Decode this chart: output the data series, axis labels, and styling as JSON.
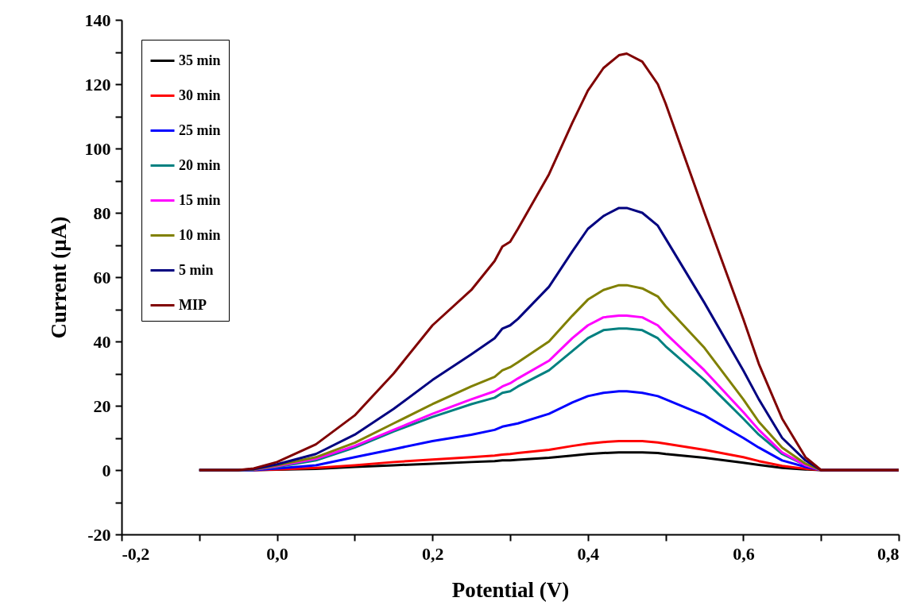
{
  "chart_data": {
    "type": "line",
    "xlabel": "Potential (V)",
    "ylabel": "Current (µA)",
    "x": [
      -0.1,
      -0.05,
      -0.03,
      0,
      0.05,
      0.1,
      0.15,
      0.2,
      0.25,
      0.28,
      0.29,
      0.3,
      0.31,
      0.35,
      0.38,
      0.4,
      0.42,
      0.44,
      0.45,
      0.47,
      0.49,
      0.5,
      0.55,
      0.6,
      0.62,
      0.65,
      0.68,
      0.7,
      0.72,
      0.8
    ],
    "series": [
      {
        "name": "35 min",
        "color": "#000000",
        "values": [
          0,
          0,
          0,
          0.1,
          0.4,
          1,
          1.5,
          2,
          2.5,
          2.8,
          3,
          3,
          3.2,
          3.8,
          4.5,
          5,
          5.3,
          5.5,
          5.5,
          5.5,
          5.3,
          5,
          3.8,
          2.3,
          1.6,
          0.7,
          0.2,
          0,
          0,
          0
        ]
      },
      {
        "name": "30 min",
        "color": "#ff0000",
        "values": [
          null,
          null,
          0,
          0.2,
          0.7,
          1.5,
          2.5,
          3.3,
          4,
          4.5,
          4.8,
          5,
          5.3,
          6.3,
          7.5,
          8.2,
          8.7,
          9,
          9,
          9,
          8.6,
          8.2,
          6.3,
          4,
          2.8,
          1.3,
          0.4,
          0,
          0,
          0
        ]
      },
      {
        "name": "25 min",
        "color": "#0000ff",
        "values": [
          0,
          0,
          0,
          0.5,
          1.5,
          4,
          6.5,
          9,
          11,
          12.5,
          13.5,
          14,
          14.5,
          17.5,
          21,
          23,
          24,
          24.5,
          24.5,
          24,
          23,
          22,
          17,
          10,
          7,
          3,
          1,
          0,
          0,
          0
        ]
      },
      {
        "name": "20 min",
        "color": "#008080",
        "values": [
          null,
          null,
          0.1,
          1,
          3,
          7,
          12,
          16.5,
          20.5,
          22.5,
          24,
          24.5,
          26,
          31,
          37,
          41,
          43.5,
          44,
          44,
          43.5,
          41,
          38.5,
          28,
          16,
          11,
          5,
          1.5,
          0,
          null,
          null
        ]
      },
      {
        "name": "15 min",
        "color": "#ff00ff",
        "values": [
          null,
          null,
          0.1,
          1.2,
          3.5,
          7.5,
          12.5,
          17.5,
          22,
          24.5,
          26,
          27,
          28.5,
          34,
          41,
          45,
          47.5,
          48,
          48,
          47.5,
          45,
          42.5,
          31,
          18,
          12.5,
          5.5,
          1.5,
          0,
          0,
          0
        ]
      },
      {
        "name": "10 min",
        "color": "#808000",
        "values": [
          0,
          0,
          0.2,
          1.5,
          4,
          8.5,
          14.5,
          20.5,
          26,
          29,
          31,
          32,
          33.5,
          40,
          48,
          53,
          56,
          57.5,
          57.5,
          56.5,
          54,
          51,
          38,
          22,
          15,
          7,
          2,
          0,
          0,
          0
        ]
      },
      {
        "name": "5 min",
        "color": "#000080",
        "values": [
          0,
          0,
          0.3,
          1.8,
          5,
          11,
          19,
          28,
          36,
          41,
          44,
          45,
          47,
          57,
          68,
          75,
          79,
          81.5,
          81.5,
          80,
          76,
          72,
          52,
          31,
          22,
          10,
          3,
          0,
          0,
          0
        ]
      },
      {
        "name": "MIP",
        "color": "#800000",
        "values": [
          0,
          0,
          0.5,
          2.5,
          8,
          17,
          30,
          45,
          56,
          65,
          69.5,
          71,
          75,
          92,
          108,
          118,
          125,
          129,
          129.5,
          127,
          120,
          114,
          80,
          47,
          33,
          16,
          4,
          0,
          0,
          0
        ]
      }
    ],
    "xlim": [
      -0.2,
      0.8
    ],
    "xticks": [
      {
        "value": -0.2,
        "label": "-0,2"
      },
      {
        "value": -0.1,
        "label": null
      },
      {
        "value": 0,
        "label": "0,0"
      },
      {
        "value": 0.1,
        "label": null
      },
      {
        "value": 0.2,
        "label": "0,2"
      },
      {
        "value": 0.3,
        "label": null
      },
      {
        "value": 0.4,
        "label": "0,4"
      },
      {
        "value": 0.5,
        "label": null
      },
      {
        "value": 0.6,
        "label": "0,6"
      },
      {
        "value": 0.7,
        "label": null
      },
      {
        "value": 0.8,
        "label": "0,8"
      }
    ],
    "ylim": [
      -20,
      140
    ],
    "yticks": [
      -20,
      {
        "value": -10,
        "label": null
      },
      0,
      {
        "value": 10,
        "label": null
      },
      20,
      {
        "value": 30,
        "label": null
      },
      40,
      {
        "value": 50,
        "label": null
      },
      60,
      {
        "value": 70,
        "label": null
      },
      80,
      {
        "value": 90,
        "label": null
      },
      100,
      {
        "value": 110,
        "label": null
      },
      120,
      {
        "value": 130,
        "label": null
      },
      140
    ],
    "legend": "top left",
    "marker": "none",
    "line_style": "solid"
  }
}
